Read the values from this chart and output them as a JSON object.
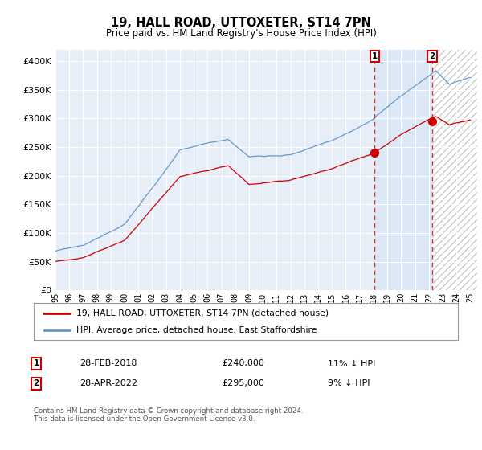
{
  "title": "19, HALL ROAD, UTTOXETER, ST14 7PN",
  "subtitle": "Price paid vs. HM Land Registry's House Price Index (HPI)",
  "legend_line1": "19, HALL ROAD, UTTOXETER, ST14 7PN (detached house)",
  "legend_line2": "HPI: Average price, detached house, East Staffordshire",
  "sale1_label": "1",
  "sale1_date": "28-FEB-2018",
  "sale1_price": 240000,
  "sale1_hpi_diff": "11% ↓ HPI",
  "sale2_label": "2",
  "sale2_date": "28-APR-2022",
  "sale2_price": 295000,
  "sale2_hpi_diff": "9% ↓ HPI",
  "footer": "Contains HM Land Registry data © Crown copyright and database right 2024.\nThis data is licensed under the Open Government Licence v3.0.",
  "hpi_color": "#6699cc",
  "price_color": "#cc0000",
  "sale_marker_color": "#cc0000",
  "background_chart": "#e8eef8",
  "highlight_color": "#dce8f5",
  "ylim": [
    0,
    420000
  ],
  "yticks": [
    0,
    50000,
    100000,
    150000,
    200000,
    250000,
    300000,
    350000,
    400000
  ],
  "sale1_x": 2018.083,
  "sale2_x": 2022.25,
  "xstart": 1995,
  "xend": 2025.5
}
